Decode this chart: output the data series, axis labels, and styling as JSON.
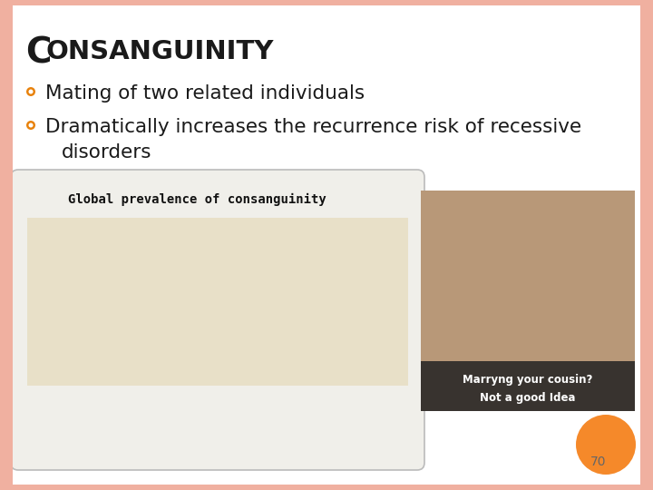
{
  "title_C": "C",
  "title_rest": "ONSANGUINITY",
  "bullet1": "Mating of two related individuals",
  "bullet2a": "Dramatically increases the recurrence risk of recessive",
  "bullet2b": "disorders",
  "bullet_color": "#E8820C",
  "title_color": "#1a1a1a",
  "text_color": "#1a1a1a",
  "bg_color": "#FFFFFF",
  "border_color": "#F0B0A0",
  "page_number": "70",
  "page_num_color": "#666666",
  "orange_circle_color": "#F5892A",
  "map_box_color": "#F5F5EE",
  "map_box_edge_color": "#AAAAAA",
  "map_text": "Global prevalence of consanguinity",
  "photo_color": "#C09070",
  "overlay_color": "#222222",
  "overlay_text1": "Marryng your cousin?",
  "overlay_text2": "Not a good Idea"
}
